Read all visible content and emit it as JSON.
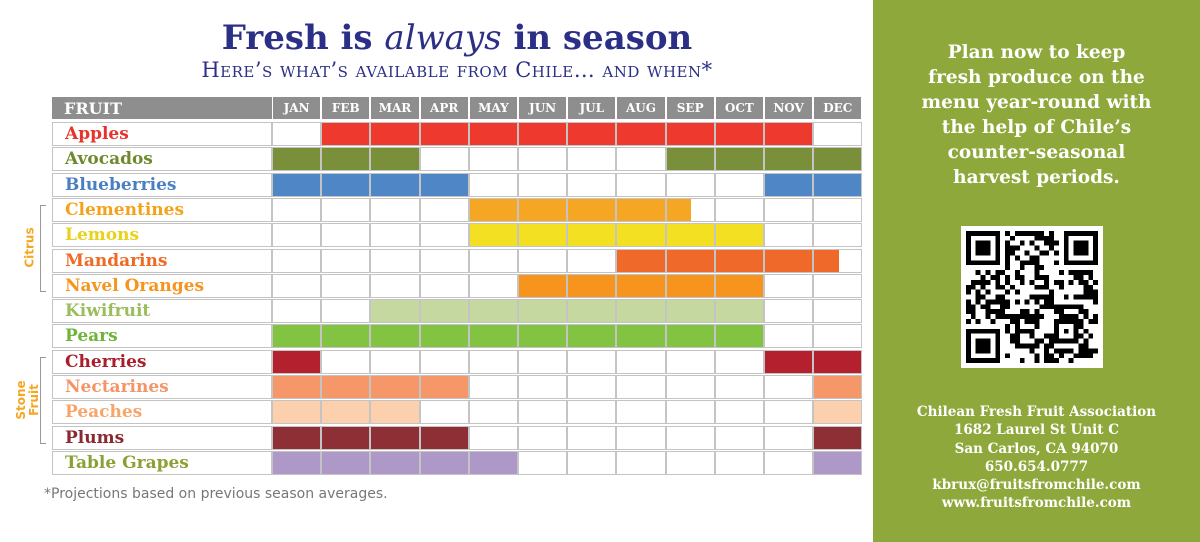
{
  "title": {
    "before": "Fresh is ",
    "emphasis": "always",
    "after": " in season"
  },
  "subtitle": "Here’s what’s available from Chile… and when*",
  "footnote": "*Projections based on previous season averages.",
  "sidebar": {
    "tagline": "Plan now to keep\nfresh produce on the\nmenu year-round with\nthe help of Chile’s\ncounter-seasonal\nharvest periods.",
    "contact": [
      "Chilean Fresh Fruit Association",
      "1682 Laurel St Unit C",
      "San Carlos, CA  94070",
      "650.654.0777",
      "kbrux@fruitsfromchile.com",
      "www.fruitsfromchile.com"
    ],
    "background_color": "#8fa83c"
  },
  "chart_data": {
    "type": "table",
    "header_label": "FRUIT",
    "months": [
      "JAN",
      "FEB",
      "MAR",
      "APR",
      "MAY",
      "JUN",
      "JUL",
      "AUG",
      "SEP",
      "OCT",
      "NOV",
      "DEC"
    ],
    "groups": [
      {
        "label": "Citrus",
        "first_row": 3,
        "last_row": 6
      },
      {
        "label": "Stone Fruit",
        "first_row": 9,
        "last_row": 12
      }
    ],
    "rows": [
      {
        "name": "Apples",
        "color": "#ee3a2e",
        "label_color": "#e8332a",
        "segments": [
          [
            2,
            11
          ]
        ]
      },
      {
        "name": "Avocados",
        "color": "#798f3a",
        "label_color": "#6f8a2e",
        "segments": [
          [
            1,
            3
          ],
          [
            9,
            12
          ]
        ]
      },
      {
        "name": "Blueberries",
        "color": "#4f86c6",
        "label_color": "#4a7fc1",
        "segments": [
          [
            1,
            4
          ],
          [
            11,
            12
          ]
        ]
      },
      {
        "name": "Clementines",
        "color": "#f5a623",
        "label_color": "#f5a21b",
        "segments": [
          [
            5,
            8.5
          ]
        ]
      },
      {
        "name": "Lemons",
        "color": "#f3e022",
        "label_color": "#e8d21a",
        "segments": [
          [
            5,
            10
          ]
        ]
      },
      {
        "name": "Mandarins",
        "color": "#ef6a2a",
        "label_color": "#ee6a25",
        "segments": [
          [
            8,
            11.5
          ]
        ]
      },
      {
        "name": "Navel Oranges",
        "color": "#f7941d",
        "label_color": "#f7941d",
        "segments": [
          [
            6,
            10
          ]
        ]
      },
      {
        "name": "Kiwifruit",
        "color": "#c5d8a0",
        "label_color": "#9bbd5c",
        "segments": [
          [
            3,
            10
          ]
        ]
      },
      {
        "name": "Pears",
        "color": "#82c342",
        "label_color": "#6fb33a",
        "segments": [
          [
            1,
            10
          ]
        ]
      },
      {
        "name": "Cherries",
        "color": "#b4202e",
        "label_color": "#a81e2b",
        "segments": [
          [
            1,
            1
          ],
          [
            11,
            12
          ]
        ]
      },
      {
        "name": "Nectarines",
        "color": "#f6976a",
        "label_color": "#f59467",
        "segments": [
          [
            1,
            4
          ],
          [
            12,
            12
          ]
        ]
      },
      {
        "name": "Peaches",
        "color": "#fccfad",
        "label_color": "#f7a669",
        "segments": [
          [
            1,
            3
          ],
          [
            12,
            12
          ]
        ]
      },
      {
        "name": "Plums",
        "color": "#8e2f35",
        "label_color": "#8a2a30",
        "segments": [
          [
            1,
            4
          ],
          [
            12,
            12
          ]
        ]
      },
      {
        "name": "Table Grapes",
        "color": "#ae98c8",
        "label_color": "#8aa135",
        "segments": [
          [
            1,
            5
          ],
          [
            12,
            12
          ]
        ]
      }
    ]
  }
}
